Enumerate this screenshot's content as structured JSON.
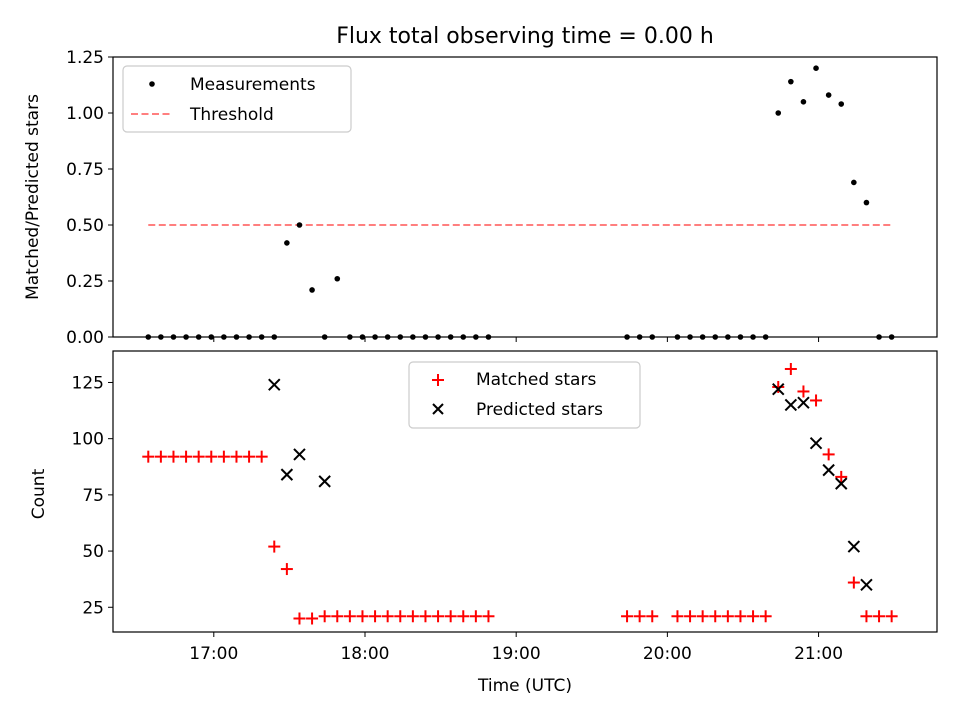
{
  "chart_data": [
    {
      "type": "scatter",
      "title": "Flux total observing time = 0.00 h",
      "xlabel": "",
      "ylabel": "Matched/Predicted stars",
      "ylim": [
        0,
        1.25
      ],
      "xlim": [
        "16:20",
        "21:47"
      ],
      "yticks": [
        "0.00",
        "0.25",
        "0.50",
        "0.75",
        "1.00",
        "1.25"
      ],
      "legend_position": "top-left",
      "grid": false,
      "series": [
        {
          "name": "Measurements",
          "kind": "dots",
          "color": "#000000",
          "x": [
            "16:34",
            "16:39",
            "16:44",
            "16:49",
            "16:54",
            "16:59",
            "17:04",
            "17:09",
            "17:14",
            "17:19",
            "17:24",
            "17:29",
            "17:34",
            "17:39",
            "17:44",
            "17:49",
            "17:54",
            "17:59",
            "18:04",
            "18:09",
            "18:14",
            "18:19",
            "18:24",
            "18:29",
            "18:34",
            "18:39",
            "18:44",
            "18:49",
            "19:44",
            "19:49",
            "19:54",
            "20:04",
            "20:09",
            "20:14",
            "20:19",
            "20:24",
            "20:29",
            "20:34",
            "20:39",
            "20:44",
            "20:49",
            "20:54",
            "20:59",
            "21:04",
            "21:09",
            "21:14",
            "21:19",
            "21:24",
            "21:29"
          ],
          "y": [
            0,
            0,
            0,
            0,
            0,
            0,
            0,
            0,
            0,
            0,
            0,
            0.42,
            0.5,
            0.21,
            0,
            0.26,
            0,
            0,
            0,
            0,
            0,
            0,
            0,
            0,
            0,
            0,
            0,
            0,
            0,
            0,
            0,
            0,
            0,
            0,
            0,
            0,
            0,
            0,
            0,
            1.0,
            1.14,
            1.05,
            1.2,
            1.08,
            1.04,
            0.69,
            0.6,
            0,
            0
          ]
        },
        {
          "name": "Threshold",
          "kind": "dashed-line",
          "color": "#ff7f7f",
          "x": [
            "16:34",
            "21:29"
          ],
          "y": [
            0.5,
            0.5
          ]
        }
      ]
    },
    {
      "type": "scatter",
      "title": "",
      "xlabel": "Time (UTC)",
      "ylabel": "Count",
      "ylim": [
        14,
        139
      ],
      "xlim": [
        "16:20",
        "21:47"
      ],
      "xticks": [
        "17:00",
        "18:00",
        "19:00",
        "20:00",
        "21:00"
      ],
      "yticks": [
        "25",
        "50",
        "75",
        "100",
        "125"
      ],
      "legend_position": "top-center",
      "grid": false,
      "series": [
        {
          "name": "Matched stars",
          "kind": "plus",
          "color": "#ff0000",
          "x": [
            "16:34",
            "16:39",
            "16:44",
            "16:49",
            "16:54",
            "16:59",
            "17:04",
            "17:09",
            "17:14",
            "17:19",
            "17:24",
            "17:29",
            "17:34",
            "17:39",
            "17:44",
            "17:49",
            "17:54",
            "17:59",
            "18:04",
            "18:09",
            "18:14",
            "18:19",
            "18:24",
            "18:29",
            "18:34",
            "18:39",
            "18:44",
            "18:49",
            "19:44",
            "19:49",
            "19:54",
            "20:04",
            "20:09",
            "20:14",
            "20:19",
            "20:24",
            "20:29",
            "20:34",
            "20:39",
            "20:44",
            "20:49",
            "20:54",
            "20:59",
            "21:04",
            "21:09",
            "21:14",
            "21:19",
            "21:24",
            "21:29"
          ],
          "y": [
            92,
            92,
            92,
            92,
            92,
            92,
            92,
            92,
            92,
            92,
            52,
            42,
            20,
            20,
            21,
            21,
            21,
            21,
            21,
            21,
            21,
            21,
            21,
            21,
            21,
            21,
            21,
            21,
            21,
            21,
            21,
            21,
            21,
            21,
            21,
            21,
            21,
            21,
            21,
            123,
            131,
            121,
            117,
            93,
            83,
            36,
            21,
            21,
            21
          ]
        },
        {
          "name": "Predicted stars",
          "kind": "cross",
          "color": "#000000",
          "x": [
            "17:24",
            "17:29",
            "17:34",
            "17:44",
            "20:44",
            "20:49",
            "20:54",
            "20:59",
            "21:04",
            "21:09",
            "21:14",
            "21:19"
          ],
          "y": [
            124,
            84,
            93,
            81,
            122,
            115,
            116,
            98,
            86,
            80,
            52,
            35
          ]
        }
      ]
    }
  ]
}
